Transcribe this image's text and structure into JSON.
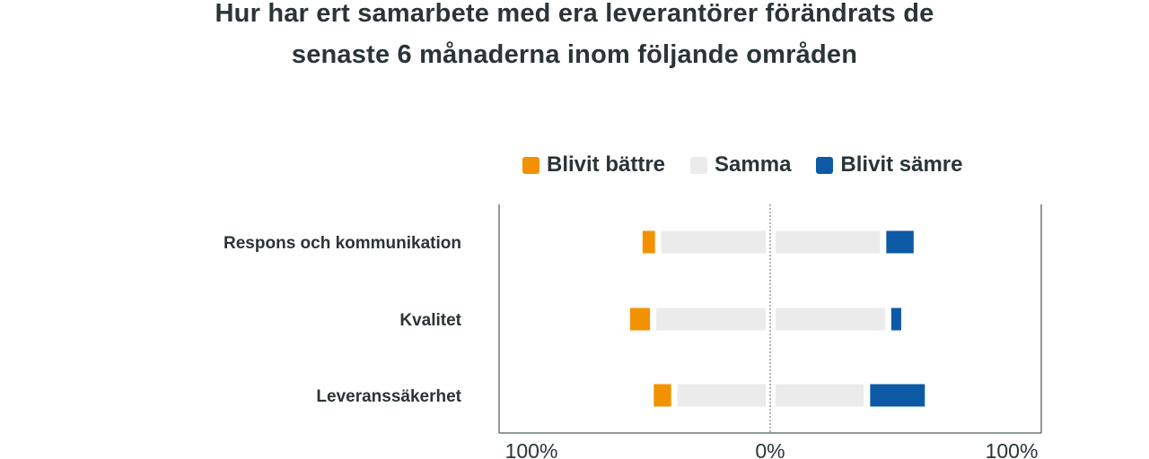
{
  "colors": {
    "better": "#f39200",
    "same": "#ebebeb",
    "worse": "#0c5aa6",
    "text": "#2b3436",
    "axis": "#6f7677"
  },
  "chart_data": {
    "type": "bar",
    "orientation": "horizontal-diverging",
    "title_lines": [
      "Hur har ert samarbete med era leverantörer förändrats de",
      "senaste 6 månaderna inom följande områden"
    ],
    "categories": [
      "Respons och kommunikation",
      "Kvalitet",
      "Leveranssäkerhet"
    ],
    "series": [
      {
        "name": "Blivit bättre",
        "key": "better",
        "values": [
          5,
          8,
          7
        ]
      },
      {
        "name": "Samma",
        "key": "same",
        "values": [
          84,
          88,
          71
        ]
      },
      {
        "name": "Blivit sämre",
        "key": "worse",
        "values": [
          11,
          4,
          22
        ]
      }
    ],
    "xlim": [
      -100,
      100
    ],
    "xtick_labels": [
      "100%",
      "0%",
      "100%"
    ],
    "legend": "top-right",
    "grid": false,
    "center_line": "dotted"
  }
}
